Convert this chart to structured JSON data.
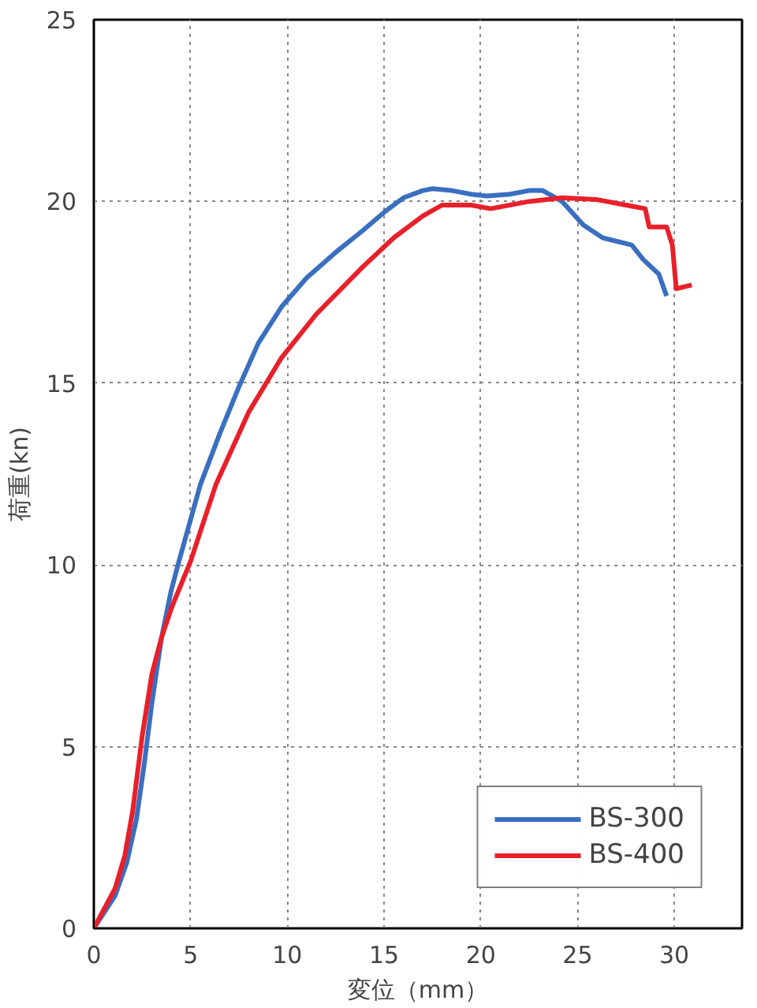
{
  "chart_data": {
    "type": "line",
    "xlabel": "変位（mm）",
    "ylabel": "荷重(kn)",
    "xlim": [
      0,
      33.5
    ],
    "ylim": [
      0,
      25
    ],
    "xticks": [
      0,
      5,
      10,
      15,
      20,
      25,
      30
    ],
    "yticks": [
      0,
      5,
      10,
      15,
      20,
      25
    ],
    "grid": true,
    "legend": "bottom right",
    "line_style": "solid",
    "marker": "none",
    "series": [
      {
        "name": "BS-300",
        "color": "#3a6fc0",
        "x": [
          0,
          1.1,
          1.7,
          2.2,
          2.6,
          3.0,
          3.5,
          4.0,
          4.4,
          5.5,
          6.5,
          7.5,
          8.5,
          9.7,
          11,
          12.5,
          13.9,
          15,
          16,
          17,
          17.5,
          18.5,
          19.5,
          20.3,
          21.5,
          22.5,
          23.2,
          24.2,
          25.3,
          26.3,
          27.8,
          28.4,
          29.2,
          29.6
        ],
        "values": [
          0,
          0.9,
          1.8,
          3.0,
          4.5,
          6.2,
          8.0,
          9.3,
          10.1,
          12.2,
          13.6,
          14.9,
          16.1,
          17.1,
          17.9,
          18.6,
          19.2,
          19.7,
          20.1,
          20.3,
          20.35,
          20.3,
          20.2,
          20.15,
          20.2,
          20.3,
          20.3,
          20.0,
          19.35,
          19.0,
          18.8,
          18.4,
          18.0,
          17.4
        ]
      },
      {
        "name": "BS-400",
        "color": "#e8202a",
        "x": [
          0,
          1.1,
          1.6,
          2.0,
          2.5,
          3.0,
          3.5,
          4.0,
          5.0,
          6.3,
          8.0,
          9.7,
          11.5,
          13.9,
          15.5,
          17,
          18,
          19.5,
          20.5,
          22.5,
          24.2,
          26,
          27.5,
          28.5,
          28.7,
          28.9,
          29.6,
          29.9,
          30.1,
          30.9
        ],
        "values": [
          0,
          1.1,
          2.0,
          3.2,
          5.3,
          7.0,
          8.0,
          8.8,
          10.1,
          12.2,
          14.2,
          15.7,
          16.9,
          18.2,
          19.0,
          19.6,
          19.9,
          19.9,
          19.8,
          20.0,
          20.1,
          20.05,
          19.9,
          19.8,
          19.3,
          19.3,
          19.3,
          18.8,
          17.6,
          17.7
        ]
      }
    ]
  }
}
